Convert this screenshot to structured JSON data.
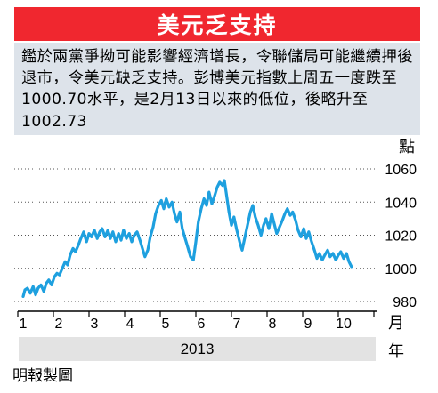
{
  "header": {
    "title": "美元乏支持",
    "description": "鑑於兩黨爭拗可能影響經濟增長，令聯儲局可能繼續押後退市，令美元缺乏支持。彭博美元指數上周五一度跌至1000.70水平，是2月13日以來的低位，後略升至1002.73"
  },
  "chart_data": {
    "type": "line",
    "title": "",
    "xlabel": "月",
    "xlabel_secondary": "2013",
    "x_secondary_unit": "年",
    "ylabel": "點",
    "ylim": [
      980,
      1060
    ],
    "yticks": [
      980,
      1000,
      1020,
      1040,
      1060
    ],
    "xlim": [
      1,
      10.3
    ],
    "xticks": [
      1,
      2,
      3,
      4,
      5,
      6,
      7,
      8,
      9,
      10
    ],
    "xtick_labels": [
      "1",
      "2",
      "3",
      "4",
      "5",
      "6",
      "7",
      "8",
      "9",
      "10"
    ],
    "grid": "dotted-horizontal",
    "series": [
      {
        "name": "",
        "color": "#1ea0df",
        "x": [
          1.0,
          1.05,
          1.12,
          1.2,
          1.28,
          1.35,
          1.42,
          1.5,
          1.58,
          1.65,
          1.72,
          1.8,
          1.88,
          1.95,
          2.02,
          2.1,
          2.18,
          2.25,
          2.32,
          2.4,
          2.47,
          2.55,
          2.62,
          2.7,
          2.78,
          2.85,
          2.92,
          3.0,
          3.08,
          3.15,
          3.22,
          3.3,
          3.38,
          3.45,
          3.52,
          3.6,
          3.68,
          3.75,
          3.82,
          3.9,
          3.98,
          4.05,
          4.12,
          4.2,
          4.28,
          4.35,
          4.42,
          4.5,
          4.57,
          4.65,
          4.72,
          4.8,
          4.88,
          4.95,
          5.02,
          5.1,
          5.18,
          5.25,
          5.32,
          5.4,
          5.47,
          5.55,
          5.62,
          5.7,
          5.78,
          5.85,
          5.92,
          6.0,
          6.08,
          6.15,
          6.22,
          6.3,
          6.38,
          6.45,
          6.52,
          6.6,
          6.65,
          6.7,
          6.78,
          6.85,
          6.92,
          7.0,
          7.08,
          7.15,
          7.22,
          7.3,
          7.38,
          7.45,
          7.52,
          7.6,
          7.68,
          7.75,
          7.82,
          7.9,
          7.98,
          8.05,
          8.12,
          8.2,
          8.28,
          8.35,
          8.42,
          8.5,
          8.57,
          8.65,
          8.72,
          8.8,
          8.88,
          8.95,
          9.02,
          9.1,
          9.18,
          9.25,
          9.32,
          9.4,
          9.47,
          9.55,
          9.62,
          9.7,
          9.78,
          9.85,
          9.92,
          10.0,
          10.08,
          10.15,
          10.22
        ],
        "y": [
          983,
          987,
          988,
          985,
          989,
          984,
          988,
          990,
          986,
          991,
          993,
          990,
          995,
          997,
          996,
          1000,
          1004,
          1002,
          1008,
          1012,
          1010,
          1014,
          1018,
          1022,
          1016,
          1021,
          1019,
          1023,
          1018,
          1022,
          1024,
          1019,
          1023,
          1018,
          1022,
          1016,
          1021,
          1017,
          1023,
          1018,
          1021,
          1016,
          1020,
          1022,
          1017,
          1012,
          1007,
          1011,
          1019,
          1025,
          1033,
          1038,
          1041,
          1036,
          1042,
          1037,
          1040,
          1033,
          1028,
          1034,
          1024,
          1018,
          1013,
          1007,
          1005,
          1016,
          1028,
          1036,
          1042,
          1038,
          1046,
          1039,
          1044,
          1049,
          1052,
          1050,
          1053,
          1046,
          1034,
          1026,
          1031,
          1023,
          1016,
          1011,
          1018,
          1026,
          1034,
          1038,
          1031,
          1026,
          1020,
          1026,
          1030,
          1024,
          1033,
          1027,
          1021,
          1025,
          1029,
          1033,
          1036,
          1032,
          1034,
          1029,
          1023,
          1019,
          1024,
          1018,
          1022,
          1016,
          1011,
          1006,
          1009,
          1005,
          1008,
          1011,
          1007,
          1009,
          1005,
          1008,
          1010,
          1006,
          1009,
          1004,
          1001
        ]
      }
    ]
  },
  "footer": {
    "source": "明報製圖"
  }
}
